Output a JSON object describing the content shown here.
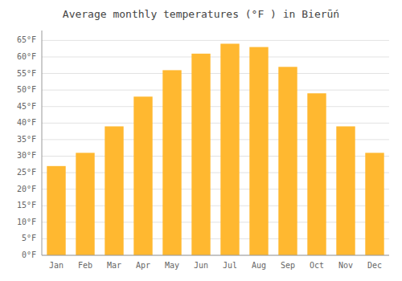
{
  "chart_data": {
    "type": "bar",
    "title": "Average monthly temperatures (°F ) in Bierūń",
    "categories": [
      "Jan",
      "Feb",
      "Mar",
      "Apr",
      "May",
      "Jun",
      "Jul",
      "Aug",
      "Sep",
      "Oct",
      "Nov",
      "Dec"
    ],
    "values": [
      27,
      31,
      39,
      48,
      56,
      61,
      64,
      63,
      57,
      49,
      39,
      31
    ],
    "color": "#FFB830",
    "ylim": [
      0,
      68
    ],
    "yticks": [
      {
        "value": 0,
        "label": "0°F"
      },
      {
        "value": 5,
        "label": "5°F"
      },
      {
        "value": 10,
        "label": "10°F"
      },
      {
        "value": 15,
        "label": "15°F"
      },
      {
        "value": 20,
        "label": "20°F"
      },
      {
        "value": 25,
        "label": "25°F"
      },
      {
        "value": 30,
        "label": "30°F"
      },
      {
        "value": 35,
        "label": "35°F"
      },
      {
        "value": 40,
        "label": "40°F"
      },
      {
        "value": 45,
        "label": "45°F"
      },
      {
        "value": 50,
        "label": "50°F"
      },
      {
        "value": 55,
        "label": "55°F"
      },
      {
        "value": 60,
        "label": "60°F"
      },
      {
        "value": 65,
        "label": "65°F"
      }
    ],
    "grid": true
  }
}
